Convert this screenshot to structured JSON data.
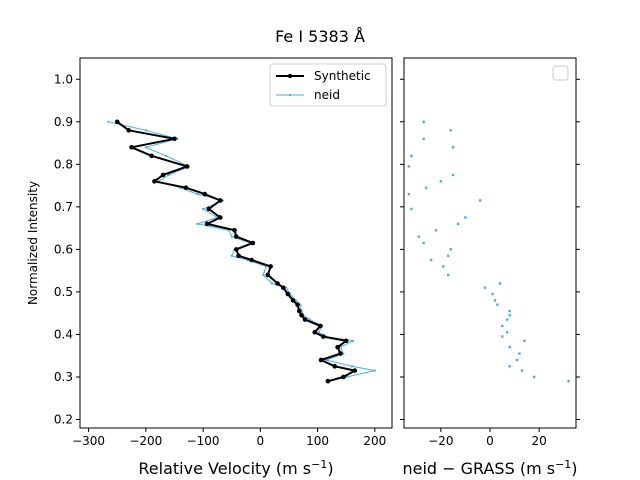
{
  "chart_data": [
    {
      "type": "line",
      "title": "Fe I 5383 Å",
      "xlabel": "Relative Velocity (m s$^{-1}$)",
      "ylabel": "Normalized Intensity",
      "xlim": [
        -315,
        230
      ],
      "ylim": [
        0.18,
        1.05
      ],
      "xticks": [
        -300,
        -200,
        -100,
        0,
        100,
        200
      ],
      "yticks": [
        0.2,
        0.3,
        0.4,
        0.5,
        0.6,
        0.7,
        0.8,
        0.9,
        1.0
      ],
      "legend_position": "top-right",
      "series": [
        {
          "name": "Synthetic",
          "color": "#000000",
          "y": [
            0.29,
            0.3,
            0.315,
            0.325,
            0.34,
            0.355,
            0.37,
            0.385,
            0.395,
            0.405,
            0.42,
            0.435,
            0.445,
            0.455,
            0.47,
            0.48,
            0.495,
            0.51,
            0.52,
            0.54,
            0.56,
            0.575,
            0.585,
            0.6,
            0.615,
            0.63,
            0.645,
            0.66,
            0.675,
            0.695,
            0.715,
            0.73,
            0.745,
            0.76,
            0.775,
            0.795,
            0.82,
            0.84,
            0.86,
            0.88,
            0.9
          ],
          "x": [
            118,
            145,
            165,
            130,
            106,
            140,
            135,
            150,
            110,
            95,
            105,
            78,
            72,
            68,
            65,
            57,
            48,
            40,
            30,
            13,
            18,
            -15,
            -38,
            -42,
            -13,
            -42,
            -45,
            -93,
            -70,
            -90,
            -70,
            -97,
            -130,
            -185,
            -170,
            -128,
            -190,
            -225,
            -150,
            -230,
            -250
          ]
        },
        {
          "name": "neid",
          "color": "#4aaee0",
          "y": [
            0.29,
            0.3,
            0.315,
            0.325,
            0.34,
            0.355,
            0.37,
            0.385,
            0.395,
            0.405,
            0.42,
            0.435,
            0.445,
            0.455,
            0.47,
            0.48,
            0.495,
            0.51,
            0.52,
            0.54,
            0.56,
            0.575,
            0.585,
            0.6,
            0.615,
            0.63,
            0.645,
            0.66,
            0.675,
            0.695,
            0.715,
            0.73,
            0.745,
            0.76,
            0.775,
            0.795,
            0.82,
            0.84,
            0.86,
            0.88,
            0.9
          ],
          "x": [
            120,
            150,
            200,
            160,
            115,
            145,
            140,
            162,
            115,
            102,
            108,
            86,
            75,
            72,
            70,
            62,
            52,
            45,
            20,
            5,
            10,
            -22,
            -50,
            -45,
            -17,
            -50,
            -55,
            -110,
            -75,
            -100,
            -65,
            -110,
            -140,
            -178,
            -160,
            -125,
            -165,
            -200,
            -145,
            -200,
            -265
          ]
        }
      ]
    },
    {
      "type": "scatter",
      "xlabel": "neid $-$ GRASS (m s$^{-1}$)",
      "xlim": [
        -35,
        35
      ],
      "ylim": [
        0.18,
        1.05
      ],
      "xticks": [
        -20,
        0,
        20
      ],
      "legend_position": "top-right",
      "series": [
        {
          "color": "#4aaee0",
          "y": [
            0.29,
            0.3,
            0.315,
            0.325,
            0.34,
            0.355,
            0.37,
            0.385,
            0.395,
            0.405,
            0.42,
            0.435,
            0.445,
            0.455,
            0.47,
            0.48,
            0.495,
            0.51,
            0.52,
            0.54,
            0.56,
            0.575,
            0.585,
            0.6,
            0.615,
            0.63,
            0.645,
            0.66,
            0.675,
            0.695,
            0.715,
            0.73,
            0.745,
            0.76,
            0.775,
            0.795,
            0.82,
            0.84,
            0.86,
            0.88,
            0.9
          ],
          "x": [
            32,
            18,
            13,
            8,
            11,
            12,
            8,
            14,
            5,
            7,
            5,
            7,
            8,
            8,
            3,
            2,
            1,
            -2,
            4,
            -17,
            -19,
            -24,
            -17,
            -16,
            -27,
            -29,
            -22,
            -13,
            -10,
            -32,
            -4,
            -33,
            -26,
            -20,
            -15,
            -33,
            -32,
            -15,
            -27,
            -16,
            -27
          ]
        }
      ]
    }
  ]
}
